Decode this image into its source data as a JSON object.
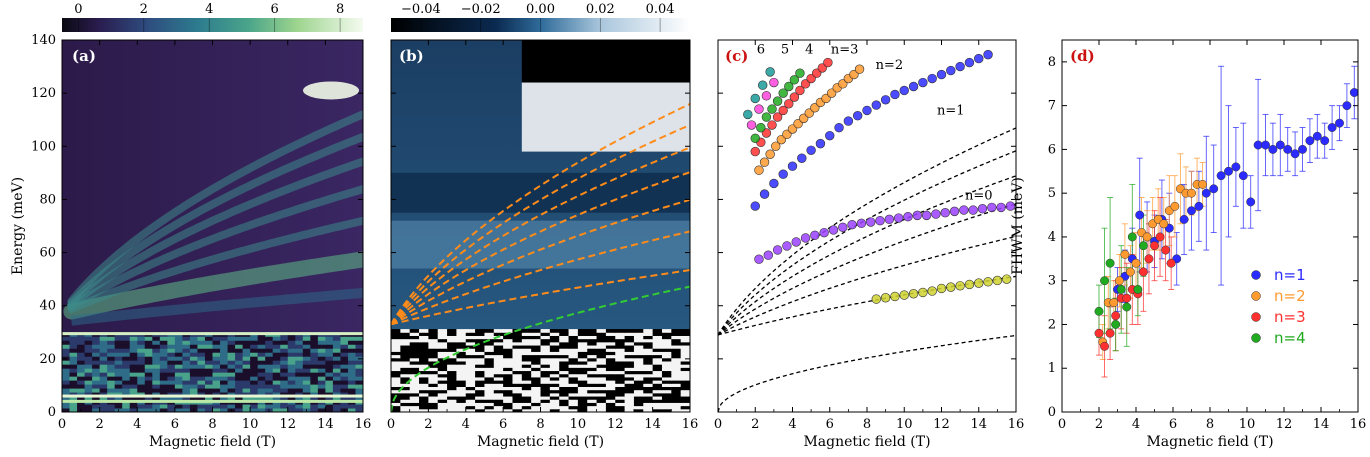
{
  "chart_data": [
    {
      "panel": "(a)",
      "type": "heatmap",
      "xlabel": "Magnetic field (T)",
      "ylabel": "Energy (meV)",
      "xlim": [
        0,
        16
      ],
      "ylim": [
        0,
        140
      ],
      "xticks": [
        "0",
        "2",
        "4",
        "6",
        "8",
        "10",
        "12",
        "14",
        "16"
      ],
      "yticks": [
        "0",
        "20",
        "40",
        "60",
        "80",
        "100",
        "120",
        "140"
      ],
      "colorbar": {
        "ticks": [
          "0",
          "2",
          "4",
          "6",
          "8"
        ],
        "range": [
          -0.5,
          8.7
        ],
        "colormap": "viridis-like"
      }
    },
    {
      "panel": "(b)",
      "type": "heatmap",
      "xlabel": "Magnetic field (T)",
      "xlim": [
        0,
        16
      ],
      "ylim": [
        0,
        140
      ],
      "xticks": [
        "0",
        "2",
        "4",
        "6",
        "8",
        "10",
        "12",
        "14",
        "16"
      ],
      "colorbar": {
        "ticks": [
          "−0.04",
          "−0.02",
          "0.00",
          "0.02",
          "0.04"
        ],
        "range": [
          -0.05,
          0.05
        ],
        "colormap": "black-blue-white"
      },
      "guide_curves": [
        {
          "color": "#ff8c1a",
          "E0": 33,
          "coeff": 10.5,
          "index": 1
        },
        {
          "color": "#ff8c1a",
          "E0": 33,
          "coeff": 10.5,
          "index": 2
        },
        {
          "color": "#ff8c1a",
          "E0": 33,
          "coeff": 10.5,
          "index": 3
        },
        {
          "color": "#ff8c1a",
          "E0": 33,
          "coeff": 10.5,
          "index": 4
        },
        {
          "color": "#ff8c1a",
          "E0": 33,
          "coeff": 10.5,
          "index": 5
        },
        {
          "color": "#ff8c1a",
          "E0": 33,
          "coeff": 10.5,
          "index": 6
        },
        {
          "color": "#ff8c1a",
          "E0": 33,
          "coeff": 10.5,
          "index": 7
        },
        {
          "color": "#33cc33",
          "E0": 0,
          "coeff": 11.8,
          "index": 1
        }
      ]
    },
    {
      "panel": "(c)",
      "type": "scatter",
      "xlabel": "Magnetic field (T)",
      "xlim": [
        0,
        16
      ],
      "ylim": [
        0,
        140
      ],
      "xticks": [
        "0",
        "2",
        "4",
        "6",
        "8",
        "10",
        "12",
        "14",
        "16"
      ],
      "annotations": [
        {
          "text": "6",
          "x": 2.3,
          "y": 135
        },
        {
          "text": "5",
          "x": 3.6,
          "y": 135
        },
        {
          "text": "4",
          "x": 4.9,
          "y": 135
        },
        {
          "text": "n=3",
          "x": 6.8,
          "y": 135
        },
        {
          "text": "n=2",
          "x": 9.2,
          "y": 129
        },
        {
          "text": "n=1",
          "x": 12.5,
          "y": 112
        },
        {
          "text": "n=0",
          "x": 14.0,
          "y": 80
        }
      ],
      "dashed_curves": [
        {
          "E0": 29,
          "coeff": 10.5,
          "index": 1
        },
        {
          "E0": 29,
          "coeff": 10.5,
          "index": 2
        },
        {
          "E0": 29,
          "coeff": 10.5,
          "index": 3
        },
        {
          "E0": 29,
          "coeff": 10.5,
          "index": 4
        },
        {
          "E0": 29,
          "coeff": 10.5,
          "index": 5
        },
        {
          "E0": 29,
          "coeff": 10.5,
          "index": 6
        },
        {
          "E0": 0,
          "coeff": 7.2,
          "index": 1
        }
      ],
      "series": [
        {
          "color": "#2b2bff",
          "x": [
            2.0,
            2.5,
            3.0,
            3.5,
            4.0,
            4.5,
            5.0,
            5.5,
            6.0,
            6.5,
            7.0,
            7.5,
            8.0,
            8.5,
            9.0,
            9.5,
            10.0,
            10.5,
            11.0,
            11.5,
            12.0,
            12.5,
            13.0,
            13.5,
            14.0,
            14.5
          ],
          "y": [
            77.5,
            82,
            86,
            89.5,
            92.5,
            95.5,
            98.5,
            101,
            104,
            107,
            109.5,
            111.5,
            113.5,
            115.5,
            117.5,
            119.5,
            121,
            122.5,
            124,
            125.5,
            127,
            128.5,
            130,
            131.5,
            133,
            134.5
          ]
        },
        {
          "color": "#9a40ff",
          "x": [
            2.2,
            2.7,
            3.2,
            3.7,
            4.2,
            4.7,
            5.2,
            5.7,
            6.2,
            6.7,
            7.2,
            7.7,
            8.2,
            8.7,
            9.2,
            9.7,
            10.2,
            10.7,
            11.2,
            11.7,
            12.2,
            12.7,
            13.2,
            13.7,
            14.2,
            14.7,
            15.2,
            15.7
          ],
          "y": [
            57.5,
            59,
            61,
            62.5,
            64,
            65.5,
            66.5,
            67.5,
            68.5,
            69.5,
            70.5,
            71,
            71.5,
            72,
            72.5,
            73,
            73.5,
            74,
            74,
            74.5,
            75,
            75.5,
            76,
            76,
            76.5,
            77,
            77,
            77.5
          ]
        },
        {
          "color": "#cfd22e",
          "x": [
            8.5,
            9.0,
            9.5,
            10.0,
            10.5,
            11.0,
            11.5,
            12.0,
            12.5,
            13.0,
            13.5,
            14.0,
            14.5,
            15.0,
            15.5
          ],
          "y": [
            42.5,
            43,
            43.5,
            44,
            44.5,
            45,
            45.5,
            46.5,
            47,
            47.5,
            48,
            48.5,
            49,
            49.5,
            50
          ]
        },
        {
          "color": "#ff9a30",
          "x": [
            2.2,
            2.5,
            2.8,
            3.1,
            3.4,
            3.7,
            4.0,
            4.3,
            4.6,
            4.9,
            5.2,
            5.5,
            5.8,
            6.1,
            6.4,
            6.7,
            7.0,
            7.3,
            7.6
          ],
          "y": [
            91,
            94,
            97,
            100,
            102.5,
            104.5,
            106.5,
            108.5,
            110.5,
            112.5,
            114.5,
            116.5,
            118,
            120,
            122,
            123.5,
            125.5,
            127,
            129
          ]
        },
        {
          "color": "#ff3030",
          "x": [
            2.0,
            2.3,
            2.6,
            2.9,
            3.2,
            3.5,
            3.8,
            4.1,
            4.4,
            4.7,
            5.0,
            5.3,
            5.6,
            5.9
          ],
          "y": [
            98,
            101.5,
            105,
            108,
            111,
            113.5,
            116,
            118.5,
            121,
            123.5,
            125.5,
            127.5,
            129.5,
            131.5
          ]
        },
        {
          "color": "#20aa20",
          "x": [
            2.0,
            2.3,
            2.6,
            2.9,
            3.2,
            3.5,
            3.8,
            4.1,
            4.4
          ],
          "y": [
            103,
            107,
            111,
            114,
            117,
            120,
            122.5,
            125,
            127.5
          ]
        },
        {
          "color": "#ff44dd",
          "x": [
            1.8,
            2.2,
            2.6,
            3.0
          ],
          "y": [
            108,
            114,
            119,
            124
          ]
        },
        {
          "color": "#1a9a9a",
          "x": [
            1.6,
            2.0,
            2.4,
            2.8
          ],
          "y": [
            112,
            118,
            123,
            128
          ]
        }
      ]
    },
    {
      "panel": "(d)",
      "type": "scatter",
      "xlabel": "Magnetic field (T)",
      "ylabel": "FHWM (meV)",
      "xlim": [
        0,
        16
      ],
      "ylim": [
        0,
        8.5
      ],
      "xticks": [
        "0",
        "2",
        "4",
        "6",
        "8",
        "10",
        "12",
        "14",
        "16"
      ],
      "yticks": [
        "0",
        "1",
        "2",
        "3",
        "4",
        "5",
        "6",
        "7",
        "8"
      ],
      "legend_position": "right-center",
      "series": [
        {
          "name": "n=1",
          "color": "#2b2bff",
          "x": [
            3.0,
            3.4,
            3.8,
            4.2,
            4.6,
            5.0,
            5.4,
            5.8,
            6.2,
            6.6,
            7.0,
            7.4,
            7.8,
            8.2,
            8.6,
            9.0,
            9.4,
            9.8,
            10.2,
            10.6,
            11.0,
            11.4,
            11.8,
            12.2,
            12.6,
            13.0,
            13.4,
            13.8,
            14.2,
            14.6,
            15.0,
            15.4,
            15.8
          ],
          "y": [
            2.8,
            3.1,
            3.5,
            4.5,
            4.0,
            3.9,
            4.4,
            4.2,
            3.5,
            4.4,
            4.6,
            4.7,
            5.0,
            5.1,
            5.4,
            5.5,
            5.6,
            5.4,
            4.8,
            6.1,
            6.1,
            6.0,
            6.1,
            6.0,
            5.9,
            6.0,
            6.2,
            6.3,
            6.2,
            6.5,
            6.6,
            7.0,
            7.3
          ],
          "err": [
            0.5,
            0.6,
            0.7,
            1.3,
            0.8,
            0.6,
            0.9,
            0.8,
            0.6,
            0.8,
            0.9,
            0.8,
            1.3,
            1.0,
            2.5,
            1.5,
            0.9,
            1.2,
            0.6,
            1.5,
            0.7,
            0.6,
            0.7,
            0.5,
            0.5,
            0.5,
            0.5,
            0.5,
            0.4,
            0.5,
            0.4,
            0.5,
            0.6
          ]
        },
        {
          "name": "n=2",
          "color": "#ff9a30",
          "x": [
            2.2,
            2.5,
            2.8,
            3.1,
            3.4,
            3.7,
            4.0,
            4.3,
            4.6,
            4.9,
            5.2,
            5.5,
            5.8,
            6.1,
            6.4,
            6.7,
            7.0,
            7.3,
            7.6
          ],
          "y": [
            1.6,
            2.5,
            2.5,
            3.0,
            3.6,
            3.2,
            3.4,
            4.1,
            4.0,
            4.3,
            4.4,
            4.3,
            4.6,
            4.7,
            5.1,
            5.0,
            5.0,
            5.2,
            5.2
          ],
          "err": [
            0.4,
            0.6,
            0.5,
            0.6,
            0.7,
            0.6,
            0.7,
            0.8,
            0.6,
            0.6,
            0.7,
            0.6,
            0.8,
            0.7,
            0.8,
            0.6,
            0.5,
            0.6,
            0.5
          ]
        },
        {
          "name": "n=3",
          "color": "#ff3030",
          "x": [
            2.0,
            2.3,
            2.6,
            2.9,
            3.2,
            3.5,
            3.8,
            4.1,
            4.4,
            4.7,
            5.0,
            5.3,
            5.6,
            5.9
          ],
          "y": [
            1.8,
            1.5,
            1.8,
            2.2,
            2.6,
            2.6,
            2.8,
            2.7,
            3.2,
            3.5,
            3.8,
            4.0,
            3.7,
            3.4
          ],
          "err": [
            0.5,
            0.7,
            0.6,
            0.8,
            0.7,
            0.8,
            0.8,
            0.7,
            0.9,
            0.8,
            0.8,
            0.9,
            0.7,
            0.6
          ]
        },
        {
          "name": "n=4",
          "color": "#20aa20",
          "x": [
            2.0,
            2.3,
            2.6,
            2.9,
            3.2,
            3.5,
            3.8,
            4.1,
            4.4
          ],
          "y": [
            2.3,
            3.0,
            3.4,
            2.0,
            2.8,
            2.4,
            4.0,
            2.8,
            3.8
          ],
          "err": [
            0.6,
            1.2,
            1.5,
            0.6,
            1.0,
            0.9,
            1.2,
            0.6,
            0.7
          ]
        }
      ]
    }
  ]
}
